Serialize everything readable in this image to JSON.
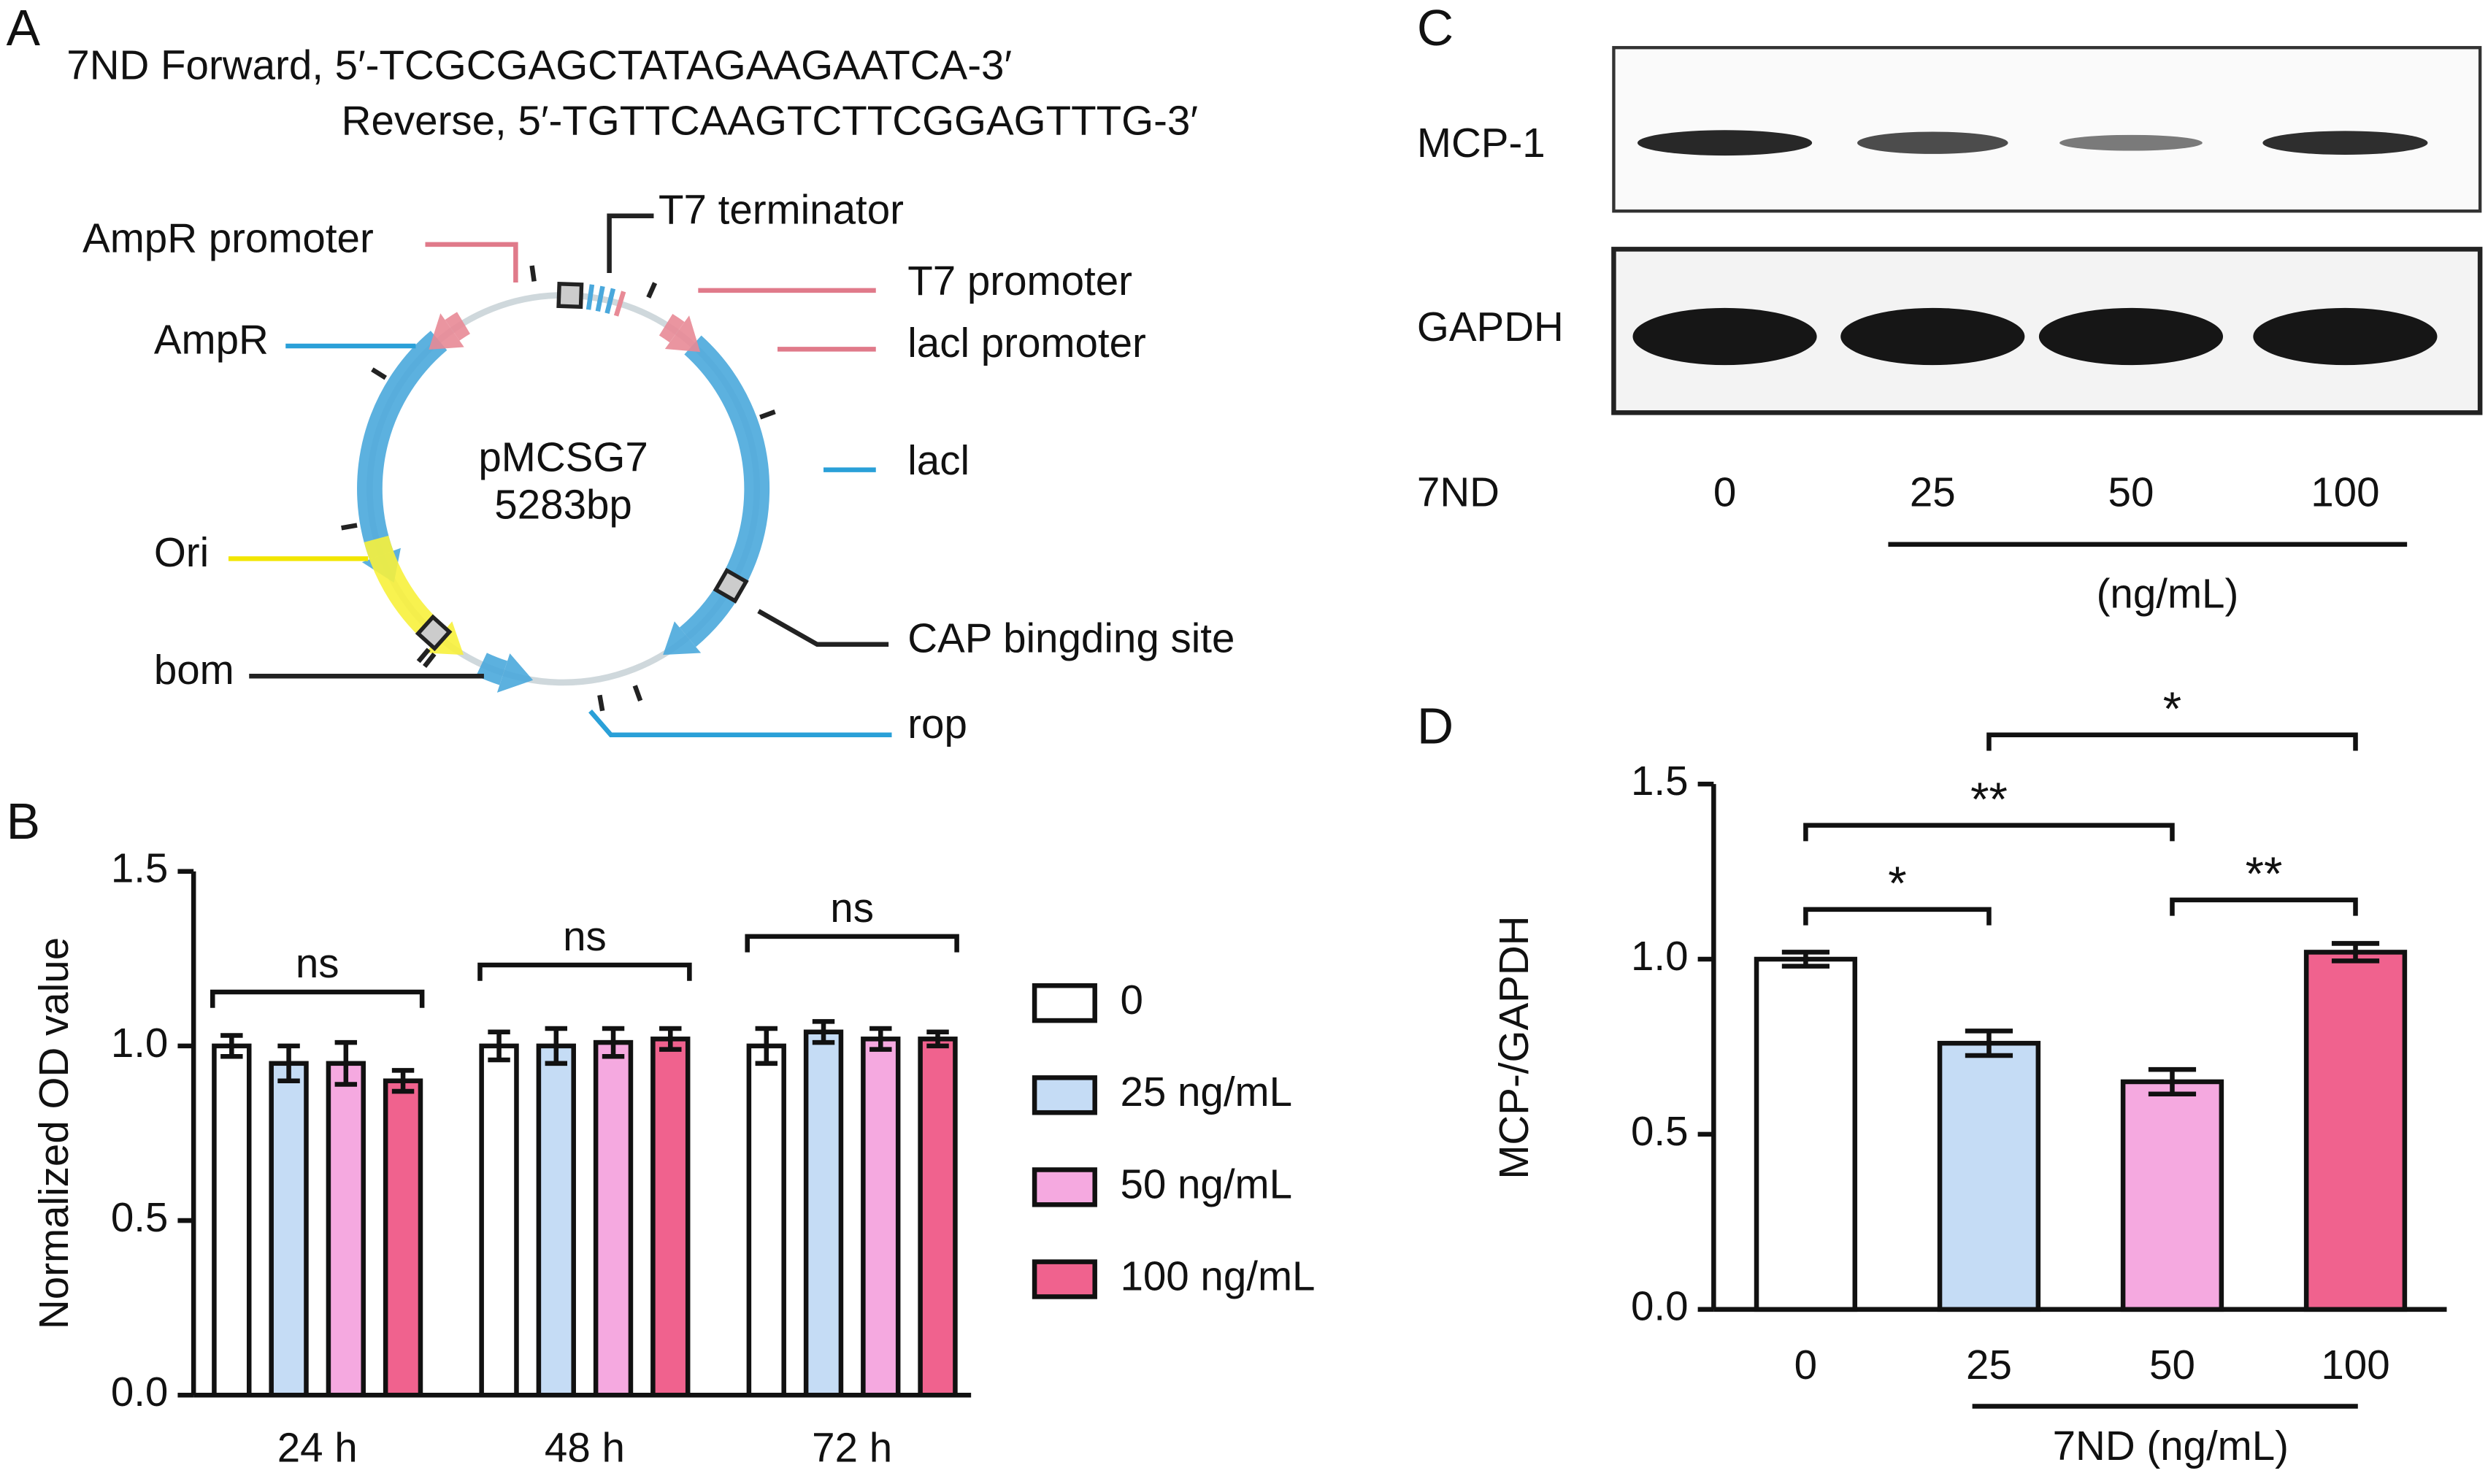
{
  "panel_a": {
    "letter": "A",
    "primer_forward": "7ND Forward, 5′-TCGCGAGCTATAGAAGAATCA-3′",
    "primer_reverse": "Reverse, 5′-TGTTCAAGTCTTCGGAGTTTG-3′",
    "plasmid_name": "pMCSG7",
    "plasmid_size": "5283bp",
    "features": [
      "AmpR promoter",
      "AmpR",
      "Ori",
      "bom",
      "T7 terminator",
      "T7 promoter",
      "lacl promoter",
      "lacl",
      "CAP bingding site",
      "rop"
    ]
  },
  "panel_c": {
    "letter": "C",
    "rows": [
      "MCP-1",
      "GAPDH"
    ],
    "dose_label": "7ND",
    "doses": [
      "0",
      "25",
      "50",
      "100"
    ],
    "unit": "(ng/mL)"
  },
  "chart_data": [
    {
      "type": "bar",
      "letter": "B",
      "y_label": "Normalized OD value",
      "categories": [
        "24 h",
        "48 h",
        "72 h"
      ],
      "series": [
        {
          "name": "0",
          "color": "#ffffff",
          "values": [
            1.0,
            1.0,
            1.0
          ],
          "errors": [
            0.03,
            0.04,
            0.05
          ]
        },
        {
          "name": "25 ng/mL",
          "color": "#c5dcf5",
          "values": [
            0.95,
            1.0,
            1.04
          ],
          "errors": [
            0.05,
            0.05,
            0.03
          ]
        },
        {
          "name": "50 ng/mL",
          "color": "#f5a9e0",
          "values": [
            0.95,
            1.01,
            1.02
          ],
          "errors": [
            0.06,
            0.04,
            0.03
          ]
        },
        {
          "name": "100 ng/mL",
          "color": "#f0628e",
          "values": [
            0.9,
            1.02,
            1.02
          ],
          "errors": [
            0.03,
            0.03,
            0.02
          ]
        }
      ],
      "ylim": [
        0,
        1.5
      ],
      "yticks": [
        {
          "value": 0,
          "label": "0.0"
        },
        0.5,
        {
          "value": 1,
          "label": "1.0"
        },
        1.5
      ],
      "annotations": [
        {
          "label": "ns",
          "group": "24 h"
        },
        {
          "label": "ns",
          "group": "48 h"
        },
        {
          "label": "ns",
          "group": "72 h"
        }
      ]
    },
    {
      "type": "bar",
      "letter": "D",
      "y_label": "MCP-/GAPDH",
      "x_label": "7ND (ng/mL)",
      "categories": [
        "0",
        "25",
        "50",
        "100"
      ],
      "values": [
        1.0,
        0.76,
        0.65,
        1.02
      ],
      "errors": [
        0.02,
        0.035,
        0.035,
        0.025
      ],
      "colors": [
        "#ffffff",
        "#c5dcf5",
        "#f5a9e0",
        "#f0628e"
      ],
      "ylim": [
        0,
        1.5
      ],
      "yticks": [
        {
          "value": 0,
          "label": "0.0"
        },
        0.5,
        {
          "value": 1,
          "label": "1.0"
        },
        1.5
      ],
      "annotations": [
        {
          "label": "*",
          "between": [
            "0",
            "25"
          ]
        },
        {
          "label": "**",
          "between": [
            "0",
            "50"
          ]
        },
        {
          "label": "**",
          "between": [
            "50",
            "100"
          ]
        },
        {
          "label": "*",
          "between": [
            "25",
            "100"
          ]
        }
      ]
    }
  ]
}
